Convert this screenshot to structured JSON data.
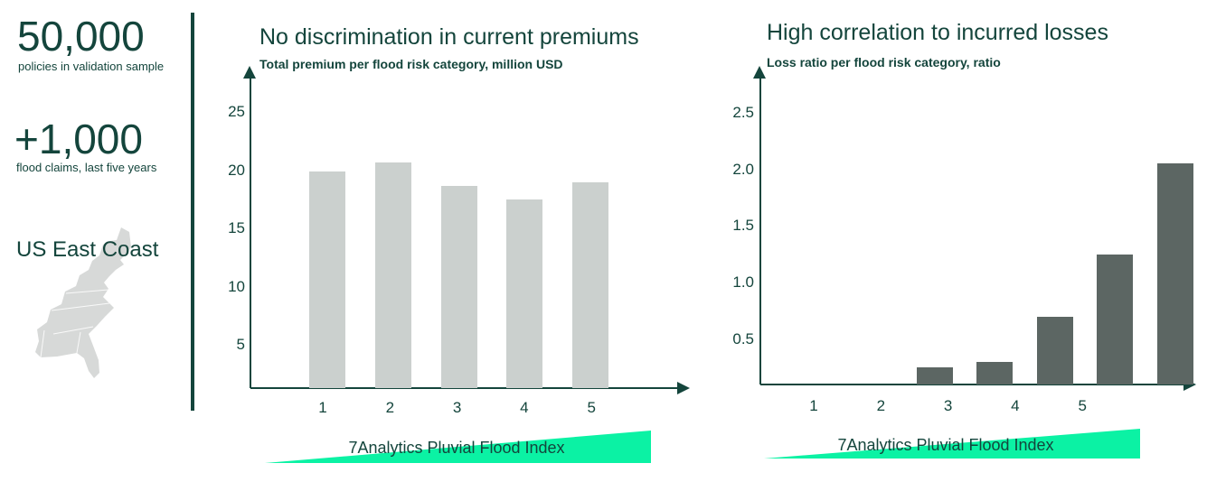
{
  "colors": {
    "accent_dark_green": "#14453C",
    "bar_light_gray": "#CBD0CE",
    "bar_dark_slate": "#5C6663",
    "wedge_mint_green": "#0BF2A4",
    "map_light_gray": "#D7D9D8",
    "background": "#FFFFFF"
  },
  "sidebar": {
    "stats": [
      {
        "value": "50,000",
        "label": "policies in validation sample"
      },
      {
        "value": "+1,000",
        "label": "flood claims, last five years"
      }
    ],
    "region_label": "US East Coast",
    "map_icon": "us-east-coast-map"
  },
  "chart_data": [
    {
      "type": "bar",
      "title": "No discrimination in current premiums",
      "subtitle": "Total premium per flood risk category, million USD",
      "categories": [
        "1",
        "2",
        "3",
        "4",
        "5"
      ],
      "values": [
        19.9,
        20.7,
        18.7,
        17.5,
        19.0
      ],
      "xlabel": "7Analytics Pluvial Flood Index",
      "ylabel": "",
      "ytick_values": [
        5,
        10,
        15,
        20,
        25
      ],
      "ytick_labels": [
        "5",
        "10",
        "15",
        "20",
        "25"
      ],
      "ylim": [
        0,
        27
      ],
      "grid": false,
      "legend": "none",
      "bar_color": "#CBD0CE"
    },
    {
      "type": "bar",
      "title": "High correlation to incurred losses",
      "subtitle": "Loss ratio per flood risk category, ratio",
      "categories": [
        "1",
        "2",
        "3",
        "4",
        "5"
      ],
      "values": [
        0,
        0.25,
        0.3,
        0.7,
        1.25,
        2.05
      ],
      "xlabel": "7Analytics Pluvial Flood Index",
      "ylabel": "",
      "ytick_values": [
        0.5,
        1.0,
        1.5,
        2.0,
        2.5
      ],
      "ytick_labels": [
        "0.5",
        "1.0",
        "1.5",
        "2.0",
        "2.5"
      ],
      "ylim": [
        0,
        2.7
      ],
      "grid": false,
      "legend": "none",
      "bar_color": "#5C6663",
      "layout_note": "six bar slots; category-1 slot empty, bars drawn offset right of tick labels with tallest bar past label 5"
    }
  ]
}
